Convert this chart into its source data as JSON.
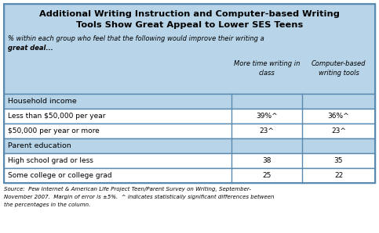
{
  "title_line1": "Additional Writing Instruction and Computer-based Writing",
  "title_line2": "Tools Show Great Appeal to Lower SES Teens",
  "subtitle": "% within each group who feel that the following would improve their writing a",
  "subtitle2": "great deal...",
  "col1_header_line1": "More time writing in",
  "col1_header_line2": "class",
  "col2_header_line1": "Computer-based",
  "col2_header_line2": "writing tools",
  "section1_label": "Household income",
  "section2_label": "Parent education",
  "rows": [
    {
      "label": "Less than $50,000 per year",
      "col1": "39%^",
      "col2": "36%^",
      "is_section": false
    },
    {
      "label": "$50,000 per year or more",
      "col1": "23^",
      "col2": "23^",
      "is_section": false
    },
    {
      "label": "High school grad or less",
      "col1": "38",
      "col2": "35",
      "is_section": false
    },
    {
      "label": "Some college or college grad",
      "col1": "25",
      "col2": "22",
      "is_section": false
    }
  ],
  "source_line1": "Source:  Pew Internet & American Life Project Teen/Parent Survey on Writing, September-",
  "source_line2": "November 2007.  Margin of error is ±5%.  ^ indicates statistically significant differences between",
  "source_line3": "the percentages in the column.",
  "header_bg": "#b8d4e8",
  "section_bg": "#b8d4e8",
  "row_bg": "#ffffff",
  "border_color": "#5a8ab0",
  "text_color": "#000000"
}
